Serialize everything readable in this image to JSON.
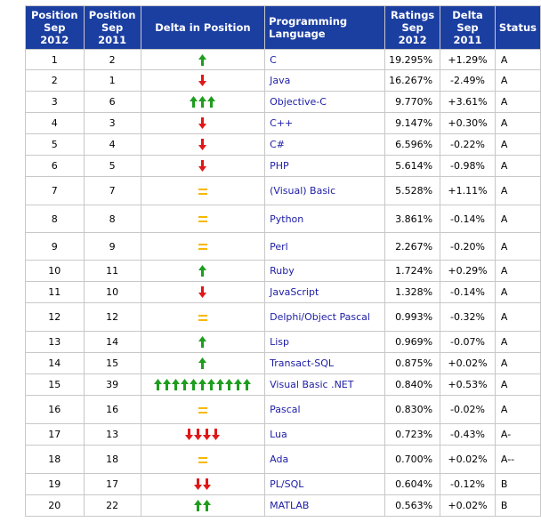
{
  "headers": {
    "pos2012": [
      "Position",
      "Sep 2012"
    ],
    "pos2011": [
      "Position",
      "Sep 2011"
    ],
    "delta_pos": "Delta in Position",
    "language": "Programming Language",
    "ratings": [
      "Ratings",
      "Sep 2012"
    ],
    "delta": [
      "Delta",
      "Sep 2011"
    ],
    "status": "Status"
  },
  "colors": {
    "header_bg": "#1b3ea1",
    "up_arrow": "#1e9d1e",
    "down_arrow": "#e01818",
    "equal": "#f7b800",
    "link": "#1c1ca6"
  },
  "rows": [
    {
      "pos2012": "1",
      "pos2011": "2",
      "trend": "up",
      "arrows": 1,
      "language": "C",
      "rating": "19.295%",
      "delta": "+1.29%",
      "status": "A"
    },
    {
      "pos2012": "2",
      "pos2011": "1",
      "trend": "down",
      "arrows": 1,
      "language": "Java",
      "rating": "16.267%",
      "delta": "-2.49%",
      "status": "A"
    },
    {
      "pos2012": "3",
      "pos2011": "6",
      "trend": "up",
      "arrows": 3,
      "language": "Objective-C",
      "rating": "9.770%",
      "delta": "+3.61%",
      "status": "A"
    },
    {
      "pos2012": "4",
      "pos2011": "3",
      "trend": "down",
      "arrows": 1,
      "language": "C++",
      "rating": "9.147%",
      "delta": "+0.30%",
      "status": "A"
    },
    {
      "pos2012": "5",
      "pos2011": "4",
      "trend": "down",
      "arrows": 1,
      "language": "C#",
      "rating": "6.596%",
      "delta": "-0.22%",
      "status": "A"
    },
    {
      "pos2012": "6",
      "pos2011": "5",
      "trend": "down",
      "arrows": 1,
      "language": "PHP",
      "rating": "5.614%",
      "delta": "-0.98%",
      "status": "A"
    },
    {
      "pos2012": "7",
      "pos2011": "7",
      "trend": "same",
      "arrows": 1,
      "language": "(Visual) Basic",
      "rating": "5.528%",
      "delta": "+1.11%",
      "status": "A"
    },
    {
      "pos2012": "8",
      "pos2011": "8",
      "trend": "same",
      "arrows": 1,
      "language": "Python",
      "rating": "3.861%",
      "delta": "-0.14%",
      "status": "A"
    },
    {
      "pos2012": "9",
      "pos2011": "9",
      "trend": "same",
      "arrows": 1,
      "language": "Perl",
      "rating": "2.267%",
      "delta": "-0.20%",
      "status": "A"
    },
    {
      "pos2012": "10",
      "pos2011": "11",
      "trend": "up",
      "arrows": 1,
      "language": "Ruby",
      "rating": "1.724%",
      "delta": "+0.29%",
      "status": "A"
    },
    {
      "pos2012": "11",
      "pos2011": "10",
      "trend": "down",
      "arrows": 1,
      "language": "JavaScript",
      "rating": "1.328%",
      "delta": "-0.14%",
      "status": "A"
    },
    {
      "pos2012": "12",
      "pos2011": "12",
      "trend": "same",
      "arrows": 1,
      "language": "Delphi/Object Pascal",
      "rating": "0.993%",
      "delta": "-0.32%",
      "status": "A"
    },
    {
      "pos2012": "13",
      "pos2011": "14",
      "trend": "up",
      "arrows": 1,
      "language": "Lisp",
      "rating": "0.969%",
      "delta": "-0.07%",
      "status": "A"
    },
    {
      "pos2012": "14",
      "pos2011": "15",
      "trend": "up",
      "arrows": 1,
      "language": "Transact-SQL",
      "rating": "0.875%",
      "delta": "+0.02%",
      "status": "A"
    },
    {
      "pos2012": "15",
      "pos2011": "39",
      "trend": "up",
      "arrows": 11,
      "language": "Visual Basic .NET",
      "rating": "0.840%",
      "delta": "+0.53%",
      "status": "A"
    },
    {
      "pos2012": "16",
      "pos2011": "16",
      "trend": "same",
      "arrows": 1,
      "language": "Pascal",
      "rating": "0.830%",
      "delta": "-0.02%",
      "status": "A"
    },
    {
      "pos2012": "17",
      "pos2011": "13",
      "trend": "down",
      "arrows": 4,
      "language": "Lua",
      "rating": "0.723%",
      "delta": "-0.43%",
      "status": "A-"
    },
    {
      "pos2012": "18",
      "pos2011": "18",
      "trend": "same",
      "arrows": 1,
      "language": "Ada",
      "rating": "0.700%",
      "delta": "+0.02%",
      "status": "A--"
    },
    {
      "pos2012": "19",
      "pos2011": "17",
      "trend": "down",
      "arrows": 2,
      "language": "PL/SQL",
      "rating": "0.604%",
      "delta": "-0.12%",
      "status": "B"
    },
    {
      "pos2012": "20",
      "pos2011": "22",
      "trend": "up",
      "arrows": 2,
      "language": "MATLAB",
      "rating": "0.563%",
      "delta": "+0.02%",
      "status": "B"
    }
  ]
}
